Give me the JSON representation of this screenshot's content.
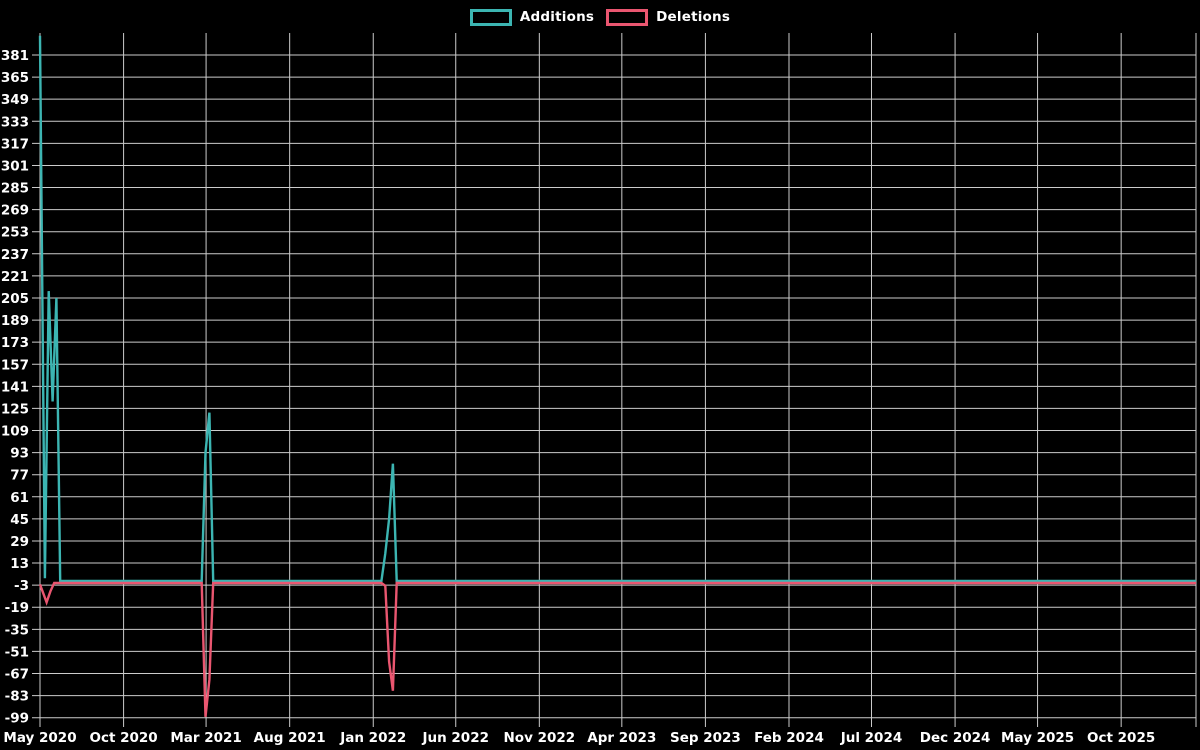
{
  "legend": {
    "items": [
      {
        "label": "Additions",
        "color": "#3cb5b2"
      },
      {
        "label": "Deletions",
        "color": "#ea5670"
      }
    ]
  },
  "chart_data": {
    "type": "line",
    "title": "",
    "background_color": "#000000",
    "grid": "on",
    "grid_color": "#cccccc",
    "text_color": "#ffffff",
    "legend_position": "top-center",
    "x_axis": {
      "ticks": [
        {
          "label": "May 2020",
          "date": "2020-05-01"
        },
        {
          "label": "Oct 2020",
          "date": "2020-10-01"
        },
        {
          "label": "Mar 2021",
          "date": "2021-03-01"
        },
        {
          "label": "Aug 2021",
          "date": "2021-08-01"
        },
        {
          "label": "Jan 2022",
          "date": "2022-01-01"
        },
        {
          "label": "Jun 2022",
          "date": "2022-06-01"
        },
        {
          "label": "Nov 2022",
          "date": "2022-11-01"
        },
        {
          "label": "Apr 2023",
          "date": "2023-04-01"
        },
        {
          "label": "Sep 2023",
          "date": "2023-09-01"
        },
        {
          "label": "Feb 2024",
          "date": "2024-02-01"
        },
        {
          "label": "Jul 2024",
          "date": "2024-07-01"
        },
        {
          "label": "Dec 2024",
          "date": "2024-12-01"
        },
        {
          "label": "May 2025",
          "date": "2025-05-01"
        },
        {
          "label": "Oct 2025",
          "date": "2025-10-01"
        }
      ],
      "range_start": "2020-05-01",
      "range_end": "2026-02-15"
    },
    "y_axis": {
      "tick_labels": [
        "381",
        "365",
        "349",
        "333",
        "317",
        "301",
        "285",
        "269",
        "253",
        "237",
        "221",
        "205",
        "189",
        "173",
        "157",
        "141",
        "125",
        "109",
        "93",
        "77",
        "61",
        "45",
        "29",
        "13",
        "-3",
        "-19",
        "-35",
        "-51",
        "-67",
        "-83",
        "-99"
      ],
      "tick_values": [
        381,
        365,
        349,
        333,
        317,
        301,
        285,
        269,
        253,
        237,
        221,
        205,
        189,
        173,
        157,
        141,
        125,
        109,
        93,
        77,
        61,
        45,
        29,
        13,
        -3,
        -19,
        -35,
        -51,
        -67,
        -83,
        -99
      ],
      "tick_step": 16,
      "axis_min": -99,
      "axis_max": 397
    },
    "series": [
      {
        "name": "Additions",
        "color": "#3cb5b2",
        "points": [
          [
            "2020-05-01",
            395
          ],
          [
            "2020-05-10",
            2
          ],
          [
            "2020-05-17",
            210
          ],
          [
            "2020-05-24",
            130
          ],
          [
            "2020-05-31",
            205
          ],
          [
            "2020-06-07",
            0
          ],
          [
            "2021-02-21",
            0
          ],
          [
            "2021-02-28",
            93
          ],
          [
            "2021-03-07",
            122
          ],
          [
            "2021-03-14",
            0
          ],
          [
            "2022-01-16",
            0
          ],
          [
            "2022-01-23",
            20
          ],
          [
            "2022-01-30",
            45
          ],
          [
            "2022-02-06",
            85
          ],
          [
            "2022-02-13",
            0
          ],
          [
            "2025-12-28",
            0
          ]
        ]
      },
      {
        "name": "Deletions",
        "color": "#ea5670",
        "points": [
          [
            "2020-05-01",
            -1
          ],
          [
            "2020-05-13",
            -14
          ],
          [
            "2020-05-20",
            -6
          ],
          [
            "2020-05-27",
            0
          ],
          [
            "2021-02-21",
            0
          ],
          [
            "2021-02-28",
            -97
          ],
          [
            "2021-03-07",
            -70
          ],
          [
            "2021-03-14",
            0
          ],
          [
            "2022-01-16",
            0
          ],
          [
            "2022-01-23",
            -2
          ],
          [
            "2022-01-30",
            -57
          ],
          [
            "2022-02-06",
            -78
          ],
          [
            "2022-02-13",
            0
          ],
          [
            "2025-12-28",
            0
          ]
        ]
      }
    ]
  }
}
